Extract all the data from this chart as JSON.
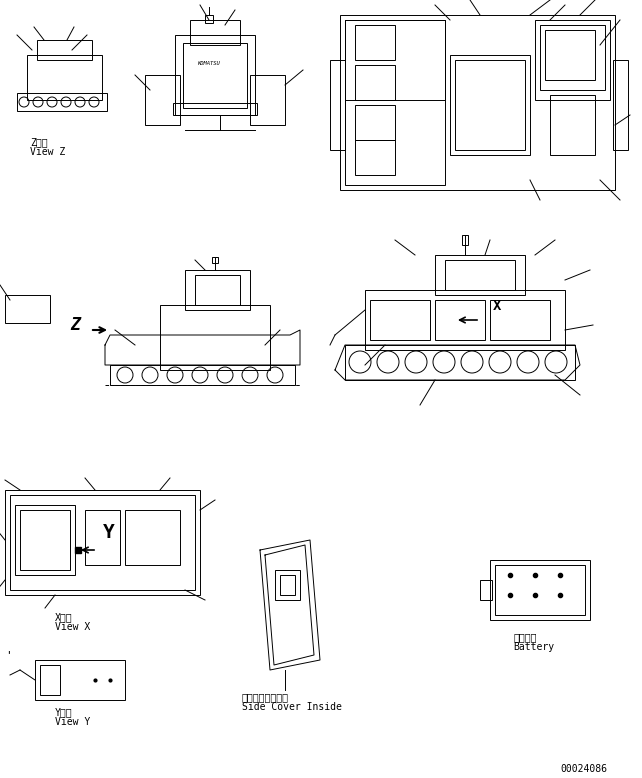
{
  "bg_color": "#ffffff",
  "line_color": "#000000",
  "fig_width": 6.42,
  "fig_height": 7.78,
  "dpi": 100,
  "labels": {
    "view_z_ja": "Z　視",
    "view_z_en": "View Z",
    "view_x_ja": "X　視",
    "view_x_en": "View X",
    "view_y_ja": "Y　視",
    "view_y_en": "View Y",
    "side_cover_ja": "サイドカバー内側",
    "side_cover_en": "Side Cover Inside",
    "battery_ja": "バッテリ",
    "battery_en": "Battery",
    "doc_num": "00024086"
  },
  "font_size_label": 7,
  "font_size_doc": 7,
  "font_name": "monospace"
}
